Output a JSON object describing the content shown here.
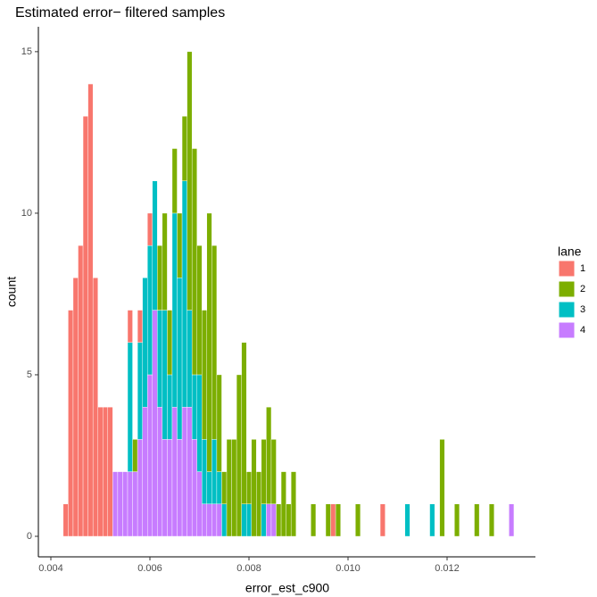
{
  "chart_data": {
    "type": "histogram",
    "title": "Estimated error− filtered samples",
    "x_label": "error_est_c900",
    "y_label": "count",
    "legend_title": "lane",
    "legend_position": "right",
    "stacked": true,
    "bins": [
      0.00425,
      0.00435,
      0.00445,
      0.00455,
      0.00465,
      0.00475,
      0.00485,
      0.00495,
      0.00505,
      0.00515,
      0.00525,
      0.00535,
      0.00545,
      0.00555,
      0.00565,
      0.00575,
      0.00585,
      0.00595,
      0.00605,
      0.00615,
      0.00625,
      0.00635,
      0.00645,
      0.00655,
      0.00665,
      0.00675,
      0.00685,
      0.00695,
      0.00705,
      0.00715,
      0.00725,
      0.00735,
      0.00745,
      0.00755,
      0.00765,
      0.00775,
      0.00785,
      0.00795,
      0.00805,
      0.00815,
      0.00825,
      0.00835,
      0.00845,
      0.00855,
      0.00865,
      0.00875,
      0.00885,
      0.00895,
      0.00905,
      0.00915,
      0.00925,
      0.00935,
      0.00945,
      0.00955,
      0.00965,
      0.00975,
      0.00985,
      0.00995,
      0.01005,
      0.01015,
      0.01025,
      0.01035,
      0.01045,
      0.01055,
      0.01065,
      0.01075,
      0.01085,
      0.01095,
      0.01105,
      0.01115,
      0.01125,
      0.01135,
      0.01145,
      0.01155,
      0.01165,
      0.01175,
      0.01185,
      0.01195,
      0.01205,
      0.01215,
      0.01225,
      0.01235,
      0.01245,
      0.01255,
      0.01265,
      0.01275,
      0.01285,
      0.01295,
      0.01305,
      0.01315,
      0.01325,
      0.01335
    ],
    "series": [
      {
        "name": "1",
        "color": "#F8766D",
        "values": [
          1,
          7,
          8,
          9,
          13,
          14,
          8,
          4,
          4,
          4,
          0,
          0,
          0,
          1,
          0,
          1,
          0,
          1,
          0,
          0,
          0,
          0,
          0,
          0,
          0,
          0,
          0,
          0,
          0,
          0,
          0,
          0,
          0,
          0,
          0,
          0,
          0,
          0,
          0,
          0,
          0,
          0,
          0,
          0,
          0,
          0,
          0,
          0,
          0,
          0,
          0,
          0,
          0,
          0,
          1,
          0,
          0,
          0,
          0,
          0,
          0,
          0,
          0,
          0,
          1,
          0,
          0,
          0,
          0,
          0,
          0,
          0,
          0,
          0,
          0,
          0,
          0,
          0,
          0,
          0,
          0,
          0,
          0,
          0,
          0,
          0,
          0,
          0,
          0,
          0,
          0
        ]
      },
      {
        "name": "2",
        "color": "#7CAE00",
        "values": [
          0,
          0,
          0,
          0,
          0,
          0,
          0,
          0,
          0,
          0,
          0,
          0,
          0,
          0,
          1,
          0,
          0,
          0,
          0,
          2,
          3,
          2,
          2,
          2,
          2,
          8,
          7,
          4,
          4,
          8,
          6,
          3,
          1,
          3,
          3,
          5,
          5,
          1,
          3,
          2,
          2,
          3,
          2,
          1,
          2,
          1,
          2,
          0,
          0,
          0,
          1,
          0,
          0,
          1,
          0,
          1,
          0,
          0,
          0,
          1,
          0,
          0,
          0,
          0,
          0,
          0,
          0,
          0,
          0,
          0,
          0,
          0,
          0,
          0,
          0,
          0,
          3,
          0,
          0,
          1,
          0,
          0,
          0,
          1,
          0,
          0,
          1,
          0,
          0,
          0,
          0
        ]
      },
      {
        "name": "3",
        "color": "#00BFC4",
        "values": [
          0,
          0,
          0,
          0,
          0,
          0,
          0,
          0,
          0,
          0,
          0,
          0,
          0,
          4,
          0,
          3,
          4,
          4,
          4,
          3,
          4,
          2,
          6,
          5,
          7,
          3,
          2,
          3,
          2,
          1,
          2,
          1,
          1,
          0,
          0,
          0,
          1,
          1,
          0,
          0,
          1,
          0,
          0,
          0,
          0,
          0,
          0,
          0,
          0,
          0,
          0,
          0,
          0,
          0,
          0,
          0,
          0,
          0,
          0,
          0,
          0,
          0,
          0,
          0,
          0,
          0,
          0,
          0,
          0,
          1,
          0,
          0,
          0,
          0,
          1,
          0,
          0,
          0,
          0,
          0,
          0,
          0,
          0,
          0,
          0,
          0,
          0,
          0,
          0,
          0,
          0
        ]
      },
      {
        "name": "4",
        "color": "#C77CFF",
        "values": [
          0,
          0,
          0,
          0,
          0,
          0,
          0,
          0,
          0,
          0,
          2,
          2,
          2,
          2,
          2,
          3,
          4,
          5,
          7,
          4,
          3,
          3,
          4,
          3,
          4,
          4,
          3,
          2,
          1,
          1,
          1,
          1,
          0,
          0,
          0,
          0,
          0,
          0,
          0,
          0,
          0,
          1,
          1,
          0,
          0,
          0,
          0,
          0,
          0,
          0,
          0,
          0,
          0,
          0,
          0,
          0,
          0,
          0,
          0,
          0,
          0,
          0,
          0,
          0,
          0,
          0,
          0,
          0,
          0,
          0,
          0,
          0,
          0,
          0,
          0,
          0,
          0,
          0,
          0,
          0,
          0,
          0,
          0,
          0,
          0,
          0,
          0,
          0,
          0,
          0,
          1
        ]
      }
    ],
    "xlim": [
      0.003748,
      0.013784
    ],
    "xticks": [
      0.004,
      0.006,
      0.008,
      {
        "value": 0.01,
        "label": "0.010"
      },
      0.012
    ],
    "ylim": [
      -0.635,
      15.77
    ],
    "yticks": [
      0,
      5,
      10,
      15
    ],
    "grid": false
  }
}
